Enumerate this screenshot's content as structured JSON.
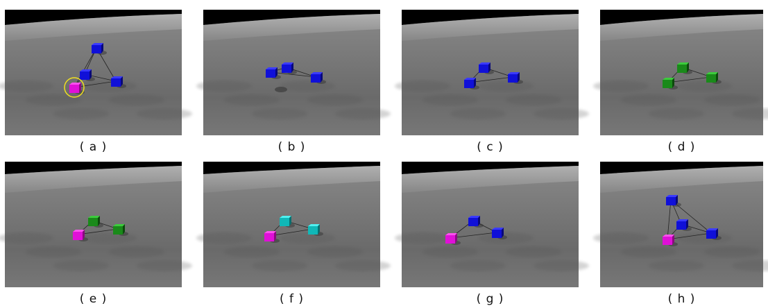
{
  "panels": [
    {
      "caption": "( a )"
    },
    {
      "caption": "( b )"
    },
    {
      "caption": "( c )"
    },
    {
      "caption": "( d )"
    },
    {
      "caption": "( e )"
    },
    {
      "caption": "( f )"
    },
    {
      "caption": "( g )"
    },
    {
      "caption": "( h )"
    }
  ]
}
